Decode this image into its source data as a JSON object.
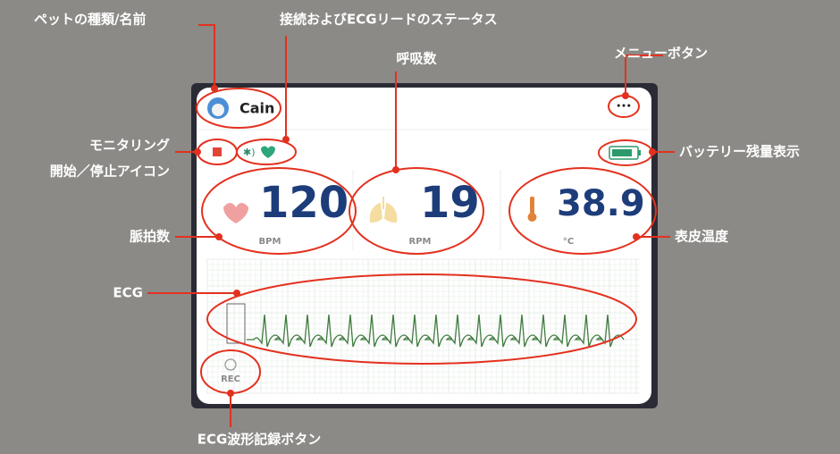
{
  "annotations": {
    "pet_name": "ペットの種類/名前",
    "status": "接続およびECGリードのステータス",
    "respiration": "呼吸数",
    "menu": "メニューボタン",
    "monitoring": [
      "モニタリング",
      "開始／停止アイコン"
    ],
    "battery": "バッテリー残量表示",
    "pulse": "脈拍数",
    "temperature": "表皮温度",
    "ecg": "ECG",
    "rec_button": "ECG波形記録ボタン"
  },
  "app": {
    "pet_name": "Cain",
    "menu": "•••",
    "pulse": {
      "value": "120",
      "unit": "BPM"
    },
    "respiration": {
      "value": "19",
      "unit": "RPM"
    },
    "temperature": {
      "value": "38.9",
      "unit": "°C"
    },
    "rec": "REC"
  }
}
